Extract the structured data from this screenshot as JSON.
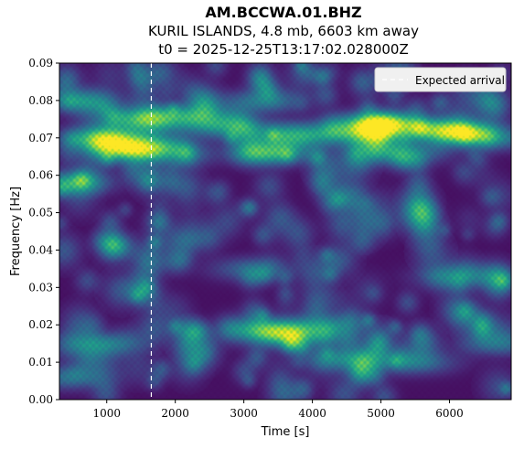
{
  "header": {
    "line1": "AM.BCCWA.01.BHZ",
    "line2": "KURIL ISLANDS, 4.8 mb, 6603 km away",
    "line3": "t0 = 2025-12-25T13:17:02.028000Z"
  },
  "colors": {
    "low": "#3b0f4f",
    "mid": "#2a788e",
    "high": "#fde725",
    "arrival_line": "#ffffff",
    "legend_bg": "#f0f0f0"
  },
  "chart_data": {
    "type": "heatmap",
    "colormap": "viridis",
    "xlabel": "Time [s]",
    "ylabel": "Frequency [Hz]",
    "xlim": [
      310,
      6900
    ],
    "ylim": [
      0.0,
      0.09
    ],
    "x_ticks": [
      1000,
      2000,
      3000,
      4000,
      5000,
      6000
    ],
    "x_tick_labels": [
      "1000",
      "2000",
      "3000",
      "4000",
      "5000",
      "6000"
    ],
    "y_ticks": [
      0.0,
      0.01,
      0.02,
      0.03,
      0.04,
      0.05,
      0.06,
      0.07,
      0.08,
      0.09
    ],
    "y_tick_labels": [
      "0.00",
      "0.01",
      "0.02",
      "0.03",
      "0.04",
      "0.05",
      "0.06",
      "0.07",
      "0.08",
      "0.09"
    ],
    "expected_arrival_time": 1650,
    "legend": {
      "placement": "top-right",
      "entries": [
        "Expected arrival"
      ]
    },
    "hotspots": [
      {
        "t": 1000,
        "f": 0.07,
        "amp": 0.75
      },
      {
        "t": 1400,
        "f": 0.067,
        "amp": 0.9
      },
      {
        "t": 1500,
        "f": 0.075,
        "amp": 0.55
      },
      {
        "t": 2200,
        "f": 0.076,
        "amp": 0.45
      },
      {
        "t": 2700,
        "f": 0.073,
        "amp": 0.45
      },
      {
        "t": 3350,
        "f": 0.066,
        "amp": 0.6
      },
      {
        "t": 3700,
        "f": 0.071,
        "amp": 0.5
      },
      {
        "t": 4700,
        "f": 0.071,
        "amp": 0.55
      },
      {
        "t": 5000,
        "f": 0.074,
        "amp": 0.95
      },
      {
        "t": 5300,
        "f": 0.066,
        "amp": 0.45
      },
      {
        "t": 6000,
        "f": 0.072,
        "amp": 0.8
      },
      {
        "t": 6600,
        "f": 0.07,
        "amp": 0.4
      },
      {
        "t": 600,
        "f": 0.08,
        "amp": 0.45
      },
      {
        "t": 3300,
        "f": 0.08,
        "amp": 0.4
      },
      {
        "t": 420,
        "f": 0.058,
        "amp": 0.55
      },
      {
        "t": 3300,
        "f": 0.019,
        "amp": 0.55
      },
      {
        "t": 3650,
        "f": 0.017,
        "amp": 0.55
      },
      {
        "t": 4200,
        "f": 0.02,
        "amp": 0.35
      },
      {
        "t": 900,
        "f": 0.015,
        "amp": 0.4
      },
      {
        "t": 4500,
        "f": 0.011,
        "amp": 0.4
      },
      {
        "t": 5500,
        "f": 0.01,
        "amp": 0.35
      },
      {
        "t": 450,
        "f": 0.006,
        "amp": 0.35
      },
      {
        "t": 6100,
        "f": 0.033,
        "amp": 0.35
      },
      {
        "t": 3100,
        "f": 0.035,
        "amp": 0.3
      },
      {
        "t": 6700,
        "f": 0.015,
        "amp": 0.3
      }
    ]
  }
}
